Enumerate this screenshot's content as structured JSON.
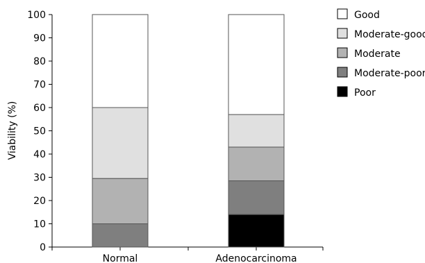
{
  "chart_data": {
    "type": "bar",
    "stacked": true,
    "categories": [
      "Normal",
      "Adenocarcinoma"
    ],
    "series": [
      {
        "name": "Poor",
        "color": "#000000",
        "values": [
          0,
          14
        ]
      },
      {
        "name": "Moderate-poor",
        "color": "#7f7f7f",
        "values": [
          10,
          14.5
        ]
      },
      {
        "name": "Moderate",
        "color": "#b2b2b2",
        "values": [
          19.5,
          14.5
        ]
      },
      {
        "name": "Moderate-good",
        "color": "#e0e0e0",
        "values": [
          30.5,
          14
        ]
      },
      {
        "name": "Good",
        "color": "#ffffff",
        "values": [
          40,
          43
        ]
      }
    ],
    "legend_order": [
      "Good",
      "Moderate-good",
      "Moderate",
      "Moderate-poor",
      "Poor"
    ],
    "ylabel": "Viability (%)",
    "xlabel": "",
    "ylim": [
      0,
      100
    ],
    "yticks": [
      0,
      10,
      20,
      30,
      40,
      50,
      60,
      70,
      80,
      90,
      100
    ],
    "grid": false,
    "legend_position": "top-right"
  }
}
